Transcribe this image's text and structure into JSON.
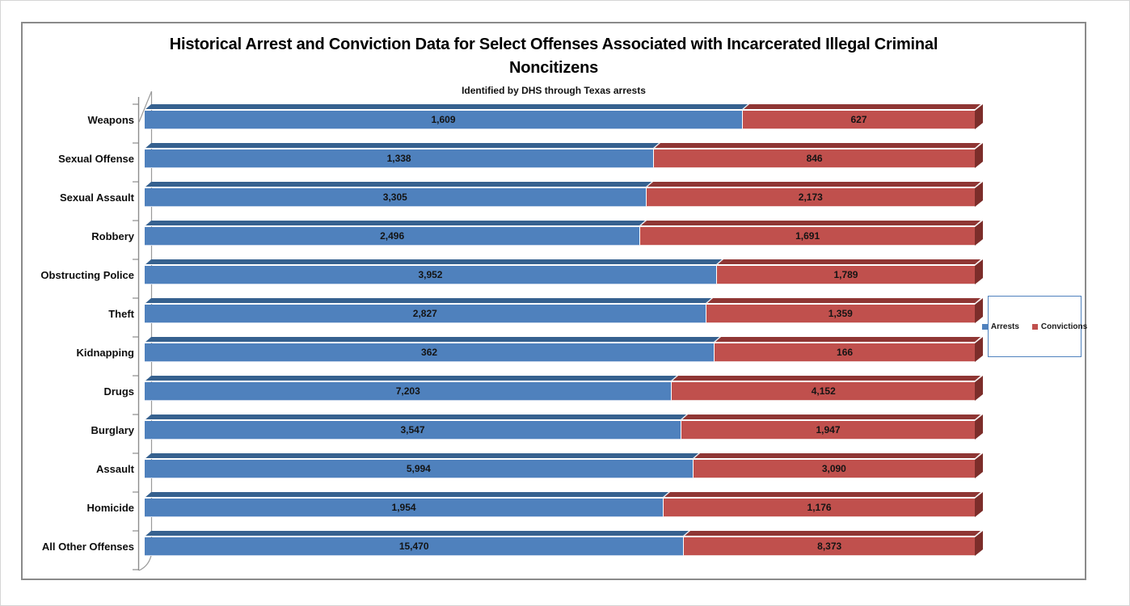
{
  "chart": {
    "title": "Historical Arrest and Conviction Data for Select Offenses Associated with Incarcerated Illegal Criminal Noncitizens",
    "subtitle": "Identified by DHS through Texas arrests"
  },
  "chart_data": {
    "type": "bar",
    "variant": "horizontal-100pct-stacked-3d",
    "title": "Historical Arrest and Conviction Data for Select Offenses Associated with Incarcerated Illegal Criminal Noncitizens",
    "subtitle": "Identified by DHS through Texas arrests",
    "grid": false,
    "legend_position": "right",
    "categories": [
      "Weapons",
      "Sexual Offense",
      "Sexual Assault",
      "Robbery",
      "Obstructing Police",
      "Theft",
      "Kidnapping",
      "Drugs",
      "Burglary",
      "Assault",
      "Homicide",
      "All Other Offenses"
    ],
    "series": [
      {
        "name": "Arrests",
        "color": "#4f81bd",
        "color_dark": "#36618f",
        "color_edge": "#c9d7eb",
        "values": [
          1609,
          1338,
          3305,
          2496,
          3952,
          2827,
          362,
          7203,
          3547,
          5994,
          1954,
          15470
        ],
        "labels": [
          "1,609",
          "1,338",
          "3,305",
          "2,496",
          "3,952",
          "2,827",
          "362",
          "7,203",
          "3,547",
          "5,994",
          "1,954",
          "15,470"
        ]
      },
      {
        "name": "Convictions",
        "color": "#c0504d",
        "color_dark": "#8f3634",
        "color_edge": "#efd9d8",
        "color_cap": "#7c2d2a",
        "values": [
          627,
          846,
          2173,
          1691,
          1789,
          1359,
          166,
          4152,
          1947,
          3090,
          1176,
          8373
        ],
        "labels": [
          "627",
          "846",
          "2,173",
          "1,691",
          "1,789",
          "1,359",
          "166",
          "4,152",
          "1,947",
          "3,090",
          "1,176",
          "8,373"
        ]
      }
    ]
  },
  "decor": {
    "axis_color": "#8c8c8c",
    "frame_color": "#8a8a8a",
    "legend_border_color": "#4f81bd"
  }
}
